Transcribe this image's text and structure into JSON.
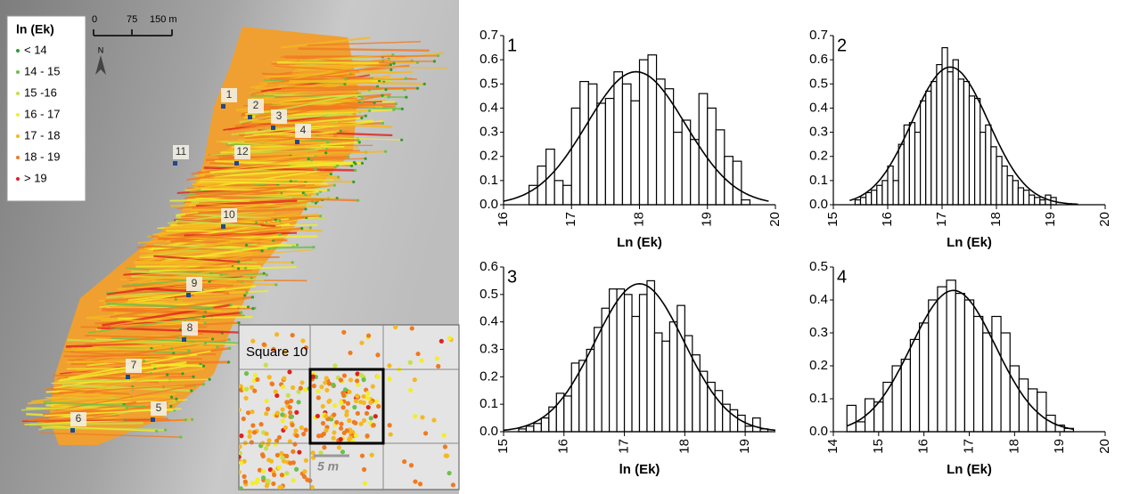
{
  "map": {
    "legend_title": "ln (Ek)",
    "legend": [
      {
        "label": "< 14",
        "color": "#2e9e2e"
      },
      {
        "label": "14 - 15",
        "color": "#6cc04a"
      },
      {
        "label": "15 -16",
        "color": "#c6e04a"
      },
      {
        "label": "16 - 17",
        "color": "#f2ee2a"
      },
      {
        "label": "17 - 18",
        "color": "#f5b820"
      },
      {
        "label": "18 - 19",
        "color": "#f07a20"
      },
      {
        "label": "> 19",
        "color": "#e02020"
      }
    ],
    "scale_labels": [
      "0",
      "75",
      "150 m"
    ],
    "north": "N",
    "sites": [
      "1",
      "2",
      "3",
      "4",
      "11",
      "12",
      "10",
      "9",
      "8",
      "7",
      "5",
      "6"
    ],
    "inset_title": "Square 10",
    "inset_scale": "5 m"
  },
  "chart_data": [
    {
      "type": "histogram",
      "label": "1",
      "x_label": "Ln (Ek)",
      "color": "#ffffff",
      "bins": [
        16.375,
        16.5,
        16.625,
        16.75,
        16.875,
        17,
        17.125,
        17.25,
        17.375,
        17.5,
        17.625,
        17.75,
        17.875,
        18,
        18.125,
        18.25,
        18.375,
        18.5,
        18.625,
        18.75,
        18.875,
        19,
        19.125,
        19.25,
        19.375,
        19.5,
        19.625
      ],
      "values": [
        0.08,
        0.16,
        0.23,
        0.1,
        0.08,
        0.4,
        0.51,
        0.5,
        0.42,
        0.44,
        0.55,
        0.5,
        0.43,
        0.6,
        0.62,
        0.52,
        0.48,
        0.3,
        0.35,
        0.27,
        0.46,
        0.4,
        0.31,
        0.2,
        0.18,
        0.02
      ],
      "fit": {
        "mean": 17.95,
        "sd": 0.725,
        "range": [
          16,
          19.9
        ]
      },
      "xlim": [
        16,
        20
      ],
      "xticks": [
        16,
        17,
        18,
        19,
        20
      ],
      "ylim": [
        0,
        0.7
      ],
      "yticks": [
        {
          "value": 0,
          "label": "0.0"
        },
        0.1,
        0.2,
        0.3,
        0.4,
        0.5,
        0.6,
        0.7
      ]
    },
    {
      "type": "histogram",
      "label": "2",
      "x_label": "Ln (Ek)",
      "color": "#ffffff",
      "bins": [
        15.4,
        15.5,
        15.6,
        15.7,
        15.8,
        15.9,
        16,
        16.1,
        16.2,
        16.3,
        16.4,
        16.5,
        16.6,
        16.7,
        16.8,
        16.9,
        17,
        17.1,
        17.2,
        17.3,
        17.4,
        17.5,
        17.6,
        17.7,
        17.8,
        17.9,
        18,
        18.1,
        18.2,
        18.3,
        18.4,
        18.5,
        18.6,
        18.7,
        18.8,
        18.9,
        19,
        19.1
      ],
      "values": [
        0.02,
        0.03,
        0.05,
        0.06,
        0.08,
        0.1,
        0.16,
        0.1,
        0.25,
        0.33,
        0.34,
        0.3,
        0.43,
        0.47,
        0.51,
        0.58,
        0.65,
        0.55,
        0.6,
        0.52,
        0.51,
        0.45,
        0.44,
        0.3,
        0.33,
        0.24,
        0.2,
        0.16,
        0.12,
        0.1,
        0.07,
        0.06,
        0.04,
        0.03,
        0.02,
        0.04,
        0.03
      ],
      "fit": {
        "mean": 17.15,
        "sd": 0.7,
        "range": [
          15.3,
          19.5
        ]
      },
      "xlim": [
        15,
        20
      ],
      "xticks": [
        15,
        16,
        17,
        18,
        19,
        20
      ],
      "ylim": [
        0,
        0.7
      ],
      "yticks": [
        {
          "value": 0,
          "label": "0.0"
        },
        0.1,
        0.2,
        0.3,
        0.4,
        0.5,
        0.6,
        0.7
      ]
    },
    {
      "type": "histogram",
      "label": "3",
      "x_label": "ln (Ek)",
      "color": "#ffffff",
      "bins": [
        15.25,
        15.375,
        15.5,
        15.625,
        15.75,
        15.875,
        16,
        16.125,
        16.25,
        16.375,
        16.5,
        16.625,
        16.75,
        16.875,
        17,
        17.125,
        17.25,
        17.375,
        17.5,
        17.625,
        17.75,
        17.875,
        18,
        18.125,
        18.25,
        18.375,
        18.5,
        18.625,
        18.75,
        18.875,
        19,
        19.125,
        19.25,
        19.375
      ],
      "values": [
        0.01,
        0.02,
        0.03,
        0.05,
        0.09,
        0.14,
        0.13,
        0.25,
        0.26,
        0.3,
        0.38,
        0.45,
        0.52,
        0.52,
        0.5,
        0.42,
        0.5,
        0.55,
        0.36,
        0.33,
        0.4,
        0.46,
        0.35,
        0.28,
        0.22,
        0.18,
        0.15,
        0.1,
        0.08,
        0.06,
        0.02,
        0.05,
        0.01
      ],
      "fit": {
        "mean": 17.25,
        "sd": 0.74,
        "range": [
          15,
          19.5
        ]
      },
      "xlim": [
        15,
        19.5
      ],
      "xticks": [
        15,
        16,
        17,
        18,
        19
      ],
      "ylim": [
        0,
        0.6
      ],
      "yticks": [
        {
          "value": 0,
          "label": "0.0"
        },
        0.1,
        0.2,
        0.3,
        0.4,
        0.5,
        0.6
      ]
    },
    {
      "type": "histogram",
      "label": "4",
      "x_label": "Ln (Ek)",
      "color": "#ffffff",
      "bins": [
        14.3,
        14.5,
        14.7,
        14.9,
        15.1,
        15.3,
        15.5,
        15.7,
        15.9,
        16.1,
        16.3,
        16.5,
        16.7,
        16.9,
        17.1,
        17.3,
        17.5,
        17.7,
        17.9,
        18.1,
        18.3,
        18.5,
        18.7,
        18.9,
        19.1,
        19.3
      ],
      "values": [
        0.08,
        0.03,
        0.1,
        0.09,
        0.15,
        0.2,
        0.22,
        0.28,
        0.33,
        0.4,
        0.44,
        0.46,
        0.42,
        0.4,
        0.35,
        0.3,
        0.35,
        0.3,
        0.2,
        0.16,
        0.13,
        0.12,
        0.05,
        0.02,
        0.01
      ],
      "fit": {
        "mean": 16.65,
        "sd": 0.93,
        "range": [
          14.3,
          19.3
        ]
      },
      "xlim": [
        14,
        20
      ],
      "xticks": [
        14,
        15,
        16,
        17,
        18,
        19,
        20
      ],
      "ylim": [
        0,
        0.5
      ],
      "yticks": [
        {
          "value": 0,
          "label": "0.0"
        },
        0.1,
        0.2,
        0.3,
        0.4,
        0.5
      ]
    }
  ]
}
